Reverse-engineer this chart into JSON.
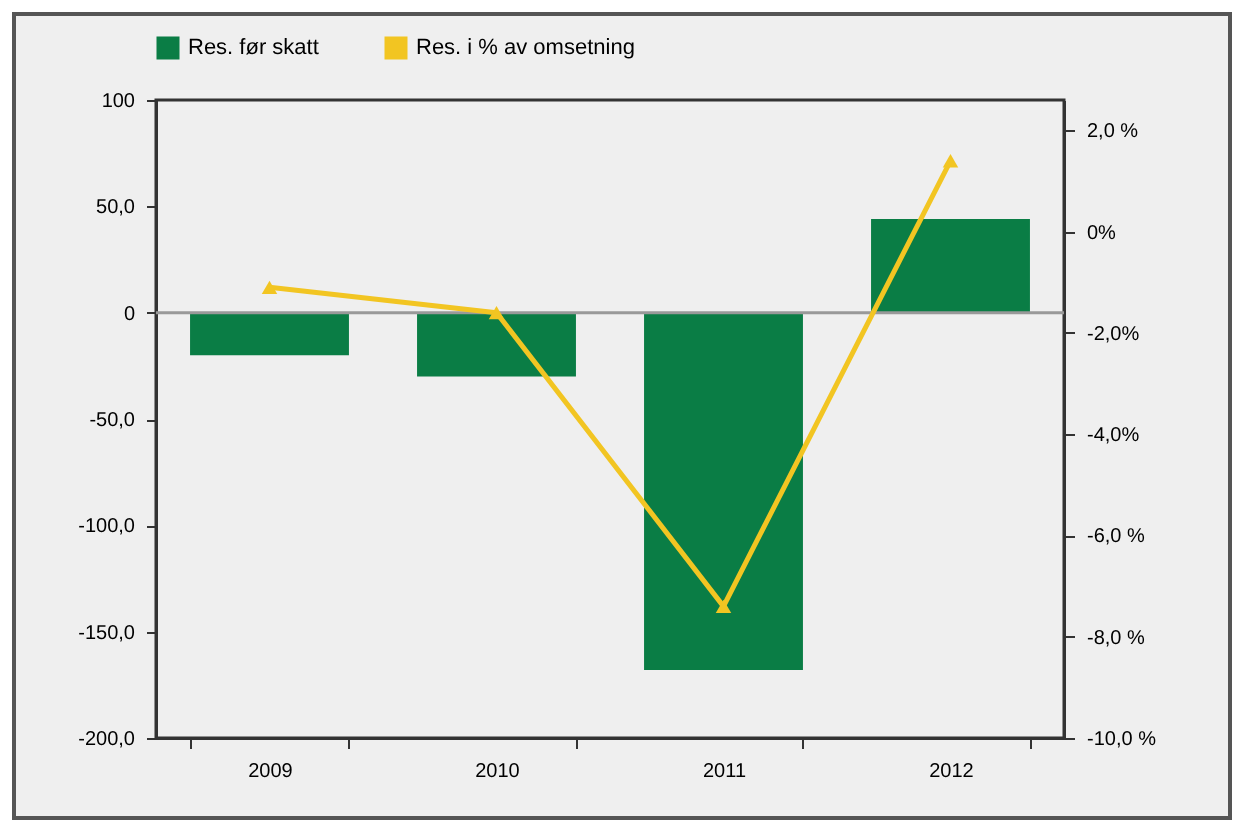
{
  "chart_data": {
    "type": "bar",
    "categories": [
      "2009",
      "2010",
      "2011",
      "2012"
    ],
    "series": [
      {
        "name": "Res. før skatt",
        "color": "#0a7d45",
        "values": [
          -20,
          -30,
          -168,
          44
        ]
      },
      {
        "name": "Res. i % av omsetning",
        "type": "line",
        "axis": "y2",
        "color": "#f2c522",
        "values": [
          -1.1,
          -1.6,
          -7.4,
          1.4
        ]
      }
    ],
    "ylim": [
      -200,
      100
    ],
    "yticks": [
      {
        "value": 100,
        "label": "100"
      },
      {
        "value": 50,
        "label": "50,0"
      },
      {
        "value": 0,
        "label": "0"
      },
      {
        "value": -50,
        "label": "-50,0"
      },
      {
        "value": -100,
        "label": "-100,0"
      },
      {
        "value": -150,
        "label": "-150,0"
      },
      {
        "value": -200,
        "label": "-200,0"
      }
    ],
    "y2lim": [
      -10,
      2.6
    ],
    "y2ticks": [
      {
        "value": 2,
        "label": "2,0 %"
      },
      {
        "value": 0,
        "label": "0%"
      },
      {
        "value": -2,
        "label": "-2,0%"
      },
      {
        "value": -4,
        "label": "-4,0%"
      },
      {
        "value": -6,
        "label": "-6,0 %"
      },
      {
        "value": -8,
        "label": "-8,0 %"
      },
      {
        "value": -10,
        "label": "-10,0 %"
      }
    ],
    "ref_lines": [
      {
        "axis": "y",
        "value": 0,
        "color": "#999999"
      }
    ],
    "marker": "triangle",
    "line_style": "solid",
    "legend": "top",
    "grid": false
  }
}
